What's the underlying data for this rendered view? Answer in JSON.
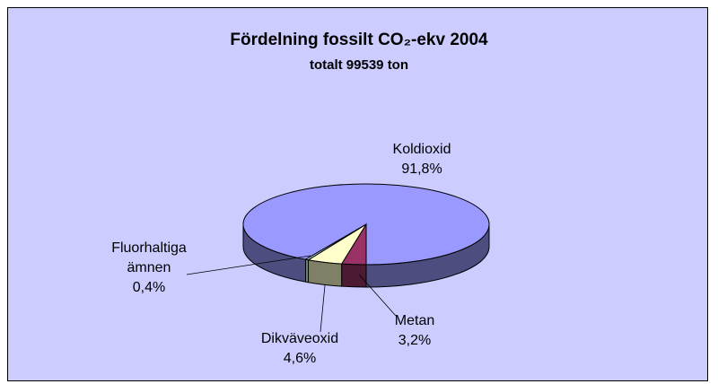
{
  "chart_data": {
    "type": "pie",
    "title": "Fördelning fossilt CO₂-ekv 2004",
    "subtitle": "totalt 99539 ton",
    "categories": [
      "Koldioxid",
      "Metan",
      "Dikväveoxid",
      "Fluorhaltiga ämnen"
    ],
    "values": [
      91.8,
      3.2,
      4.6,
      0.4
    ],
    "value_labels": [
      "91,8%",
      "3,2%",
      "4,6%",
      "0,4%"
    ],
    "colors": [
      "#9999ff",
      "#993366",
      "#ffffcc",
      "#ccffff"
    ],
    "background": "#ccccff"
  }
}
